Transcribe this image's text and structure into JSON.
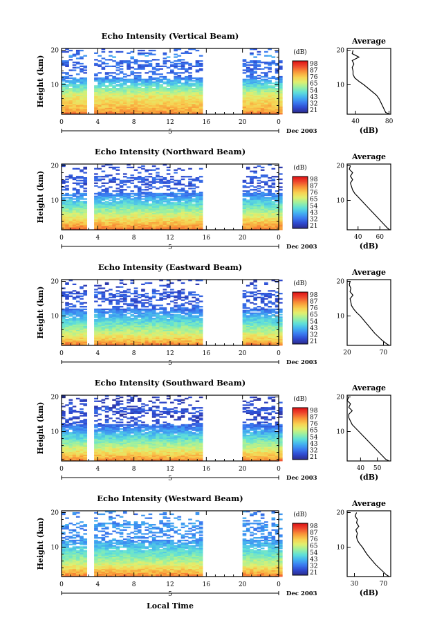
{
  "figure": {
    "xlabel": "Local Time",
    "date_label": "Dec 2003",
    "day_marker": "5",
    "colorbar_unit": "(dB)",
    "avg_title": "Average",
    "avg_xlabel": "(dB)",
    "ylabel": "Height (km)"
  },
  "chart_data": [
    {
      "type": "heatmap",
      "title": "Echo Intensity (Vertical Beam)",
      "xlabel": "Local Time",
      "ylabel": "Height (km)",
      "x_ticks": [
        "0",
        "4",
        "8",
        "12",
        "16",
        "20",
        "0"
      ],
      "y_ticks": [
        "10",
        "20"
      ],
      "xlim": [
        0,
        24
      ],
      "ylim": [
        1.5,
        20.5
      ],
      "data_gaps_hours": [
        [
          3,
          3.3
        ],
        [
          15.8,
          19.6
        ]
      ],
      "colorbar_ticks": [
        "98",
        "87",
        "76",
        "65",
        "54",
        "43",
        "32",
        "21"
      ],
      "average": {
        "title": "Average",
        "xlabel": "(dB)",
        "x_ticks": [
          "40",
          "80"
        ],
        "xlim": [
          30,
          82
        ],
        "height": [
          1.5,
          2,
          3,
          4,
          5,
          6,
          7,
          8,
          9,
          10,
          11,
          12,
          13,
          14,
          15,
          16,
          17,
          18,
          19,
          20
        ],
        "value": [
          81,
          76,
          74,
          72,
          70,
          68,
          65,
          60,
          55,
          50,
          44,
          39,
          37,
          37,
          36,
          38,
          36,
          44,
          36,
          37
        ]
      }
    },
    {
      "type": "heatmap",
      "title": "Echo Intensity (Northward Beam)",
      "xlabel": "Local Time",
      "ylabel": "Height (km)",
      "x_ticks": [
        "0",
        "4",
        "8",
        "12",
        "16",
        "20",
        "0"
      ],
      "y_ticks": [
        "10",
        "20"
      ],
      "xlim": [
        0,
        24
      ],
      "ylim": [
        1.5,
        20.5
      ],
      "data_gaps_hours": [
        [
          3,
          3.3
        ],
        [
          15.8,
          19.6
        ]
      ],
      "colorbar_ticks": [
        "98",
        "87",
        "76",
        "65",
        "54",
        "43",
        "32",
        "21"
      ],
      "average": {
        "title": "Average",
        "xlabel": "(dB)",
        "x_ticks": [
          "40",
          "60"
        ],
        "xlim": [
          30,
          70
        ],
        "height": [
          1.5,
          2,
          3,
          4,
          5,
          6,
          7,
          8,
          9,
          10,
          11,
          12,
          13,
          14,
          15,
          16,
          17,
          18,
          19,
          20
        ],
        "value": [
          69,
          67,
          64,
          61,
          58,
          55,
          52,
          49,
          46,
          43,
          40,
          37,
          35,
          34,
          33,
          35,
          33,
          35,
          32,
          33
        ]
      }
    },
    {
      "type": "heatmap",
      "title": "Echo Intensity (Eastward Beam)",
      "xlabel": "Local Time",
      "ylabel": "Height (km)",
      "x_ticks": [
        "0",
        "4",
        "8",
        "12",
        "16",
        "20",
        "0"
      ],
      "y_ticks": [
        "10",
        "20"
      ],
      "xlim": [
        0,
        24
      ],
      "ylim": [
        1.5,
        20.5
      ],
      "data_gaps_hours": [
        [
          3,
          3.3
        ],
        [
          15.8,
          19.6
        ]
      ],
      "colorbar_ticks": [
        "98",
        "87",
        "76",
        "65",
        "54",
        "43",
        "32",
        "21"
      ],
      "average": {
        "title": "Average",
        "xlabel": "",
        "x_ticks": [
          "20",
          "70"
        ],
        "xlim": [
          20,
          80
        ],
        "height": [
          1.5,
          2,
          3,
          4,
          5,
          6,
          7,
          8,
          9,
          10,
          11,
          12,
          13,
          14,
          15,
          16,
          17,
          18,
          19,
          20
        ],
        "value": [
          78,
          74,
          68,
          63,
          58,
          54,
          50,
          46,
          42,
          38,
          33,
          29,
          26,
          25,
          24,
          28,
          24,
          25,
          23,
          24
        ]
      }
    },
    {
      "type": "heatmap",
      "title": "Echo Intensity (Southward Beam)",
      "xlabel": "Local Time",
      "ylabel": "Height (km)",
      "x_ticks": [
        "0",
        "4",
        "8",
        "12",
        "16",
        "20",
        "0"
      ],
      "y_ticks": [
        "10",
        "20"
      ],
      "xlim": [
        0,
        24
      ],
      "ylim": [
        1.5,
        20.5
      ],
      "data_gaps_hours": [
        [
          3,
          3.3
        ],
        [
          15.8,
          19.6
        ]
      ],
      "colorbar_ticks": [
        "98",
        "87",
        "76",
        "65",
        "54",
        "43",
        "32",
        "21"
      ],
      "average": {
        "title": "Average",
        "xlabel": "(dB)",
        "x_ticks": [
          "40",
          "50"
        ],
        "xlim": [
          32,
          58
        ],
        "height": [
          1.5,
          2,
          3,
          4,
          5,
          6,
          7,
          8,
          9,
          10,
          11,
          12,
          13,
          14,
          15,
          16,
          17,
          18,
          19,
          20
        ],
        "value": [
          57,
          55,
          53,
          51,
          49,
          47,
          45,
          43,
          41,
          39,
          37,
          35,
          34,
          33,
          33,
          35,
          33,
          34,
          32,
          33
        ]
      }
    },
    {
      "type": "heatmap",
      "title": "Echo Intensity (Westward Beam)",
      "xlabel": "Local Time",
      "ylabel": "Height (km)",
      "x_ticks": [
        "0",
        "4",
        "8",
        "12",
        "16",
        "20",
        "0"
      ],
      "y_ticks": [
        "10",
        "20"
      ],
      "xlim": [
        0,
        24
      ],
      "ylim": [
        1.5,
        20.5
      ],
      "data_gaps_hours": [
        [
          3,
          3.3
        ],
        [
          15.8,
          19.6
        ]
      ],
      "colorbar_ticks": [
        "98",
        "87",
        "76",
        "65",
        "54",
        "43",
        "32",
        "21"
      ],
      "average": {
        "title": "Average",
        "xlabel": "(dB)",
        "x_ticks": [
          "30",
          "70"
        ],
        "xlim": [
          20,
          80
        ],
        "height": [
          1.5,
          2,
          3,
          4,
          5,
          6,
          7,
          8,
          9,
          10,
          11,
          12,
          13,
          14,
          15,
          16,
          17,
          18,
          19,
          20
        ],
        "value": [
          78,
          74,
          69,
          64,
          59,
          55,
          51,
          47,
          44,
          41,
          37,
          34,
          33,
          34,
          32,
          36,
          33,
          34,
          31,
          33
        ]
      }
    }
  ],
  "colors": {
    "colormap": [
      "#2c2c8c",
      "#2f4ad0",
      "#3b7cf0",
      "#44b2f0",
      "#60e0d8",
      "#9cf0a0",
      "#e0f070",
      "#f8d050",
      "#f89838",
      "#f05030",
      "#e01818"
    ],
    "line": "#000000"
  }
}
